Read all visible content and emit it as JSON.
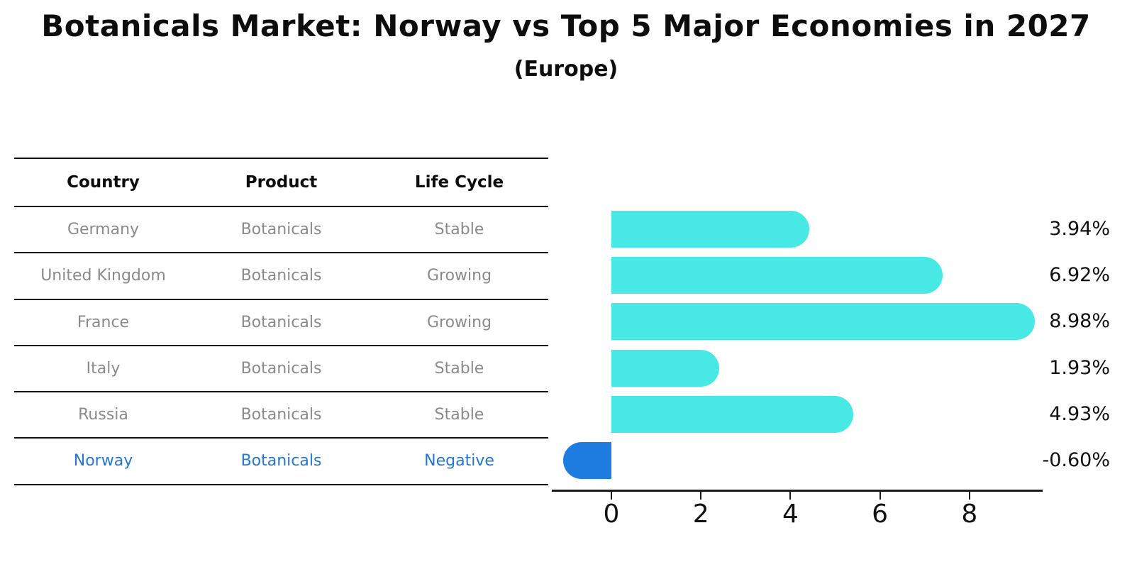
{
  "title": "Botanicals Market: Norway vs Top 5 Major Economies in 2027",
  "subtitle": "(Europe)",
  "table": {
    "headers": [
      "Country",
      "Product",
      "Life Cycle"
    ],
    "rows": [
      {
        "country": "Germany",
        "product": "Botanicals",
        "life_cycle": "Stable",
        "highlight": false
      },
      {
        "country": "United Kingdom",
        "product": "Botanicals",
        "life_cycle": "Growing",
        "highlight": false
      },
      {
        "country": "France",
        "product": "Botanicals",
        "life_cycle": "Growing",
        "highlight": false
      },
      {
        "country": "Italy",
        "product": "Botanicals",
        "life_cycle": "Stable",
        "highlight": false
      },
      {
        "country": "Russia",
        "product": "Botanicals",
        "life_cycle": "Stable",
        "highlight": false
      },
      {
        "country": "Norway",
        "product": "Botanicals",
        "life_cycle": "Negative",
        "highlight": true
      }
    ]
  },
  "chart_data": {
    "type": "bar",
    "orientation": "horizontal",
    "categories": [
      "Germany",
      "United Kingdom",
      "France",
      "Italy",
      "Russia",
      "Norway"
    ],
    "values": [
      3.94,
      6.92,
      8.98,
      1.93,
      4.93,
      -0.6
    ],
    "value_labels": [
      "3.94%",
      "6.92%",
      "8.98%",
      "1.93%",
      "4.93%",
      "-0.60%"
    ],
    "x_ticks": [
      0,
      2,
      4,
      6,
      8
    ],
    "x_tick_labels": [
      "0",
      "2",
      "4",
      "6",
      "8"
    ],
    "xlim": [
      -1.33,
      9.64
    ],
    "grid": false,
    "legend": "none",
    "bar_color": "#48e9e4",
    "highlight_color": "#1f7ce0",
    "highlight_index": 5,
    "highlight_border": "dotted",
    "text_gray": "#8a8a8a",
    "highlight_text_color": "#2578cd"
  }
}
